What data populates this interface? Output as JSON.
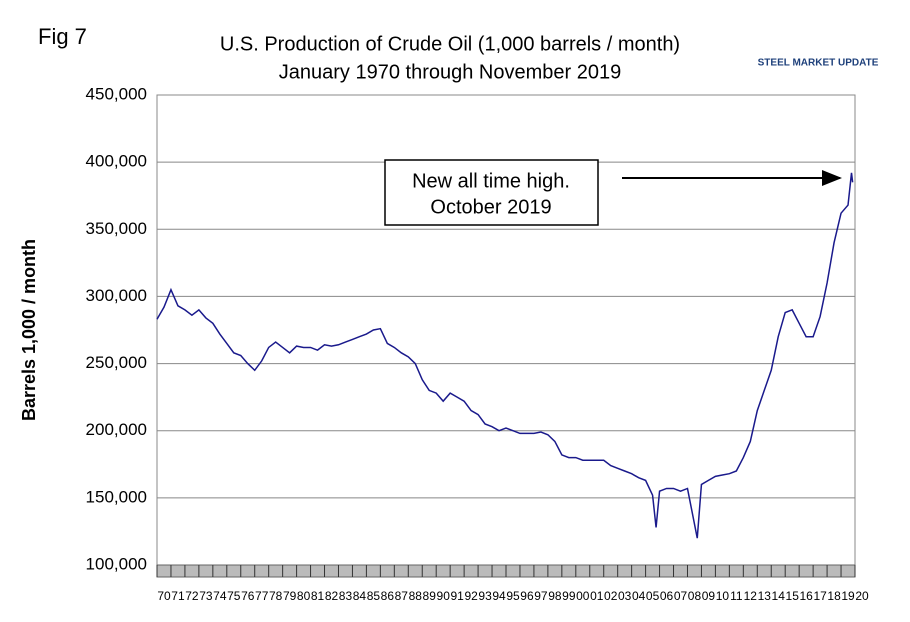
{
  "chart_data": {
    "type": "line",
    "fig_label": "Fig 7",
    "title": "U.S. Production of Crude Oil (1,000 barrels / month)",
    "subtitle": "January 1970 through November 2019",
    "logo": "STEEL MARKET UPDATE",
    "y_label": "Barrels 1,000 / month",
    "annotation": [
      "New all time high.",
      "October 2019"
    ],
    "grid": true,
    "x": [
      1970.0,
      1970.5,
      1971.0,
      1971.5,
      1972.0,
      1972.5,
      1973.0,
      1973.5,
      1974.0,
      1974.5,
      1975.0,
      1975.5,
      1976.0,
      1976.5,
      1977.0,
      1977.5,
      1978.0,
      1978.5,
      1979.0,
      1979.5,
      1980.0,
      1980.5,
      1981.0,
      1981.5,
      1982.0,
      1982.5,
      1983.0,
      1983.5,
      1984.0,
      1984.5,
      1985.0,
      1985.5,
      1986.0,
      1986.5,
      1987.0,
      1987.5,
      1988.0,
      1988.5,
      1989.0,
      1989.5,
      1990.0,
      1990.5,
      1991.0,
      1991.5,
      1992.0,
      1992.5,
      1993.0,
      1993.5,
      1994.0,
      1994.5,
      1995.0,
      1995.5,
      1996.0,
      1996.5,
      1997.0,
      1997.5,
      1998.0,
      1998.5,
      1999.0,
      1999.5,
      2000.0,
      2000.5,
      2001.0,
      2001.5,
      2002.0,
      2002.5,
      2003.0,
      2003.5,
      2004.0,
      2004.5,
      2005.0,
      2005.5,
      2005.75,
      2006.0,
      2006.5,
      2007.0,
      2007.5,
      2008.0,
      2008.7,
      2009.0,
      2009.5,
      2010.0,
      2010.5,
      2011.0,
      2011.5,
      2012.0,
      2012.5,
      2013.0,
      2013.5,
      2014.0,
      2014.5,
      2015.0,
      2015.5,
      2016.0,
      2016.5,
      2017.0,
      2017.5,
      2018.0,
      2018.5,
      2019.0,
      2019.5,
      2019.75,
      2019.83
    ],
    "series": [
      {
        "name": "U.S. Production of Crude Oil",
        "color": "#1a1a8c",
        "values": [
          283000,
          292000,
          305000,
          293000,
          290000,
          286000,
          290000,
          284000,
          280000,
          272000,
          265000,
          258000,
          256000,
          250000,
          245000,
          252000,
          262000,
          266000,
          262000,
          258000,
          263000,
          262000,
          262000,
          260000,
          264000,
          263000,
          264000,
          266000,
          268000,
          270000,
          272000,
          275000,
          276000,
          265000,
          262000,
          258000,
          255000,
          250000,
          238000,
          230000,
          228000,
          222000,
          228000,
          225000,
          222000,
          215000,
          212000,
          205000,
          203000,
          200000,
          202000,
          200000,
          198000,
          198000,
          198000,
          199000,
          197000,
          192000,
          182000,
          180000,
          180000,
          178000,
          178000,
          178000,
          178000,
          174000,
          172000,
          170000,
          168000,
          165000,
          163000,
          152000,
          128000,
          155000,
          157000,
          157000,
          155000,
          157000,
          120000,
          160000,
          163000,
          166000,
          167000,
          168000,
          170000,
          180000,
          192000,
          215000,
          230000,
          245000,
          270000,
          288000,
          290000,
          280000,
          270000,
          270000,
          285000,
          310000,
          340000,
          362000,
          368000,
          392000,
          385000
        ]
      }
    ],
    "xlim": [
      1970,
      2020
    ],
    "xticks": [
      {
        "value": 1970,
        "label": "70"
      },
      {
        "value": 1971,
        "label": "71"
      },
      {
        "value": 1972,
        "label": "72"
      },
      {
        "value": 1973,
        "label": "73"
      },
      {
        "value": 1974,
        "label": "74"
      },
      {
        "value": 1975,
        "label": "75"
      },
      {
        "value": 1976,
        "label": "76"
      },
      {
        "value": 1977,
        "label": "77"
      },
      {
        "value": 1978,
        "label": "78"
      },
      {
        "value": 1979,
        "label": "79"
      },
      {
        "value": 1980,
        "label": "80"
      },
      {
        "value": 1981,
        "label": "81"
      },
      {
        "value": 1982,
        "label": "82"
      },
      {
        "value": 1983,
        "label": "83"
      },
      {
        "value": 1984,
        "label": "84"
      },
      {
        "value": 1985,
        "label": "85"
      },
      {
        "value": 1986,
        "label": "86"
      },
      {
        "value": 1987,
        "label": "87"
      },
      {
        "value": 1988,
        "label": "88"
      },
      {
        "value": 1989,
        "label": "89"
      },
      {
        "value": 1990,
        "label": "90"
      },
      {
        "value": 1991,
        "label": "91"
      },
      {
        "value": 1992,
        "label": "92"
      },
      {
        "value": 1993,
        "label": "93"
      },
      {
        "value": 1994,
        "label": "94"
      },
      {
        "value": 1995,
        "label": "95"
      },
      {
        "value": 1996,
        "label": "96"
      },
      {
        "value": 1997,
        "label": "97"
      },
      {
        "value": 1998,
        "label": "98"
      },
      {
        "value": 1999,
        "label": "99"
      },
      {
        "value": 2000,
        "label": "00"
      },
      {
        "value": 2001,
        "label": "01"
      },
      {
        "value": 2002,
        "label": "02"
      },
      {
        "value": 2003,
        "label": "03"
      },
      {
        "value": 2004,
        "label": "04"
      },
      {
        "value": 2005,
        "label": "05"
      },
      {
        "value": 2006,
        "label": "06"
      },
      {
        "value": 2007,
        "label": "07"
      },
      {
        "value": 2008,
        "label": "08"
      },
      {
        "value": 2009,
        "label": "09"
      },
      {
        "value": 2010,
        "label": "10"
      },
      {
        "value": 2011,
        "label": "11"
      },
      {
        "value": 2012,
        "label": "12"
      },
      {
        "value": 2013,
        "label": "13"
      },
      {
        "value": 2014,
        "label": "14"
      },
      {
        "value": 2015,
        "label": "15"
      },
      {
        "value": 2016,
        "label": "16"
      },
      {
        "value": 2017,
        "label": "17"
      },
      {
        "value": 2018,
        "label": "18"
      },
      {
        "value": 2019,
        "label": "19"
      },
      {
        "value": 2020,
        "label": "20"
      }
    ],
    "ylim": [
      100000,
      450000
    ],
    "yticks": [
      {
        "value": 100000,
        "label": "100,000"
      },
      {
        "value": 150000,
        "label": "150,000"
      },
      {
        "value": 200000,
        "label": "200,000"
      },
      {
        "value": 250000,
        "label": "250,000"
      },
      {
        "value": 300000,
        "label": "300,000"
      },
      {
        "value": 350000,
        "label": "350,000"
      },
      {
        "value": 400000,
        "label": "400,000"
      },
      {
        "value": 450000,
        "label": "450,000"
      }
    ]
  }
}
